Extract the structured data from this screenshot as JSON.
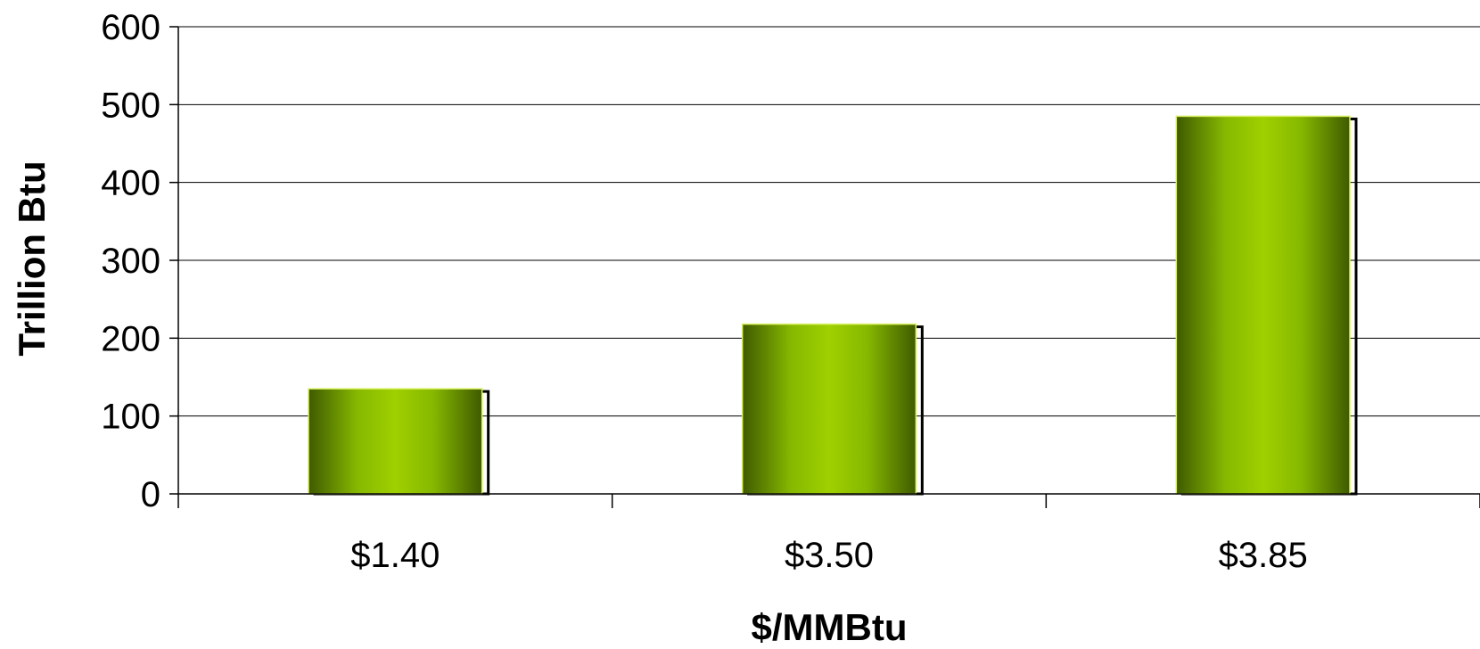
{
  "chart_data": {
    "type": "bar",
    "categories": [
      "$1.40",
      "$3.50",
      "$3.85"
    ],
    "values": [
      135,
      218,
      485
    ],
    "xlabel": "$/MMBtu",
    "ylabel": "Trillion Btu",
    "ylim": [
      0,
      600
    ],
    "yticks": [
      "0",
      "100",
      "200",
      "300",
      "400",
      "500",
      "600"
    ],
    "grid": true,
    "legend": "none",
    "colors": {
      "bar_dark": "#3f5a00",
      "bar_light": "#9fd000",
      "bar_outline": "#000000",
      "grid": "#000000"
    }
  }
}
